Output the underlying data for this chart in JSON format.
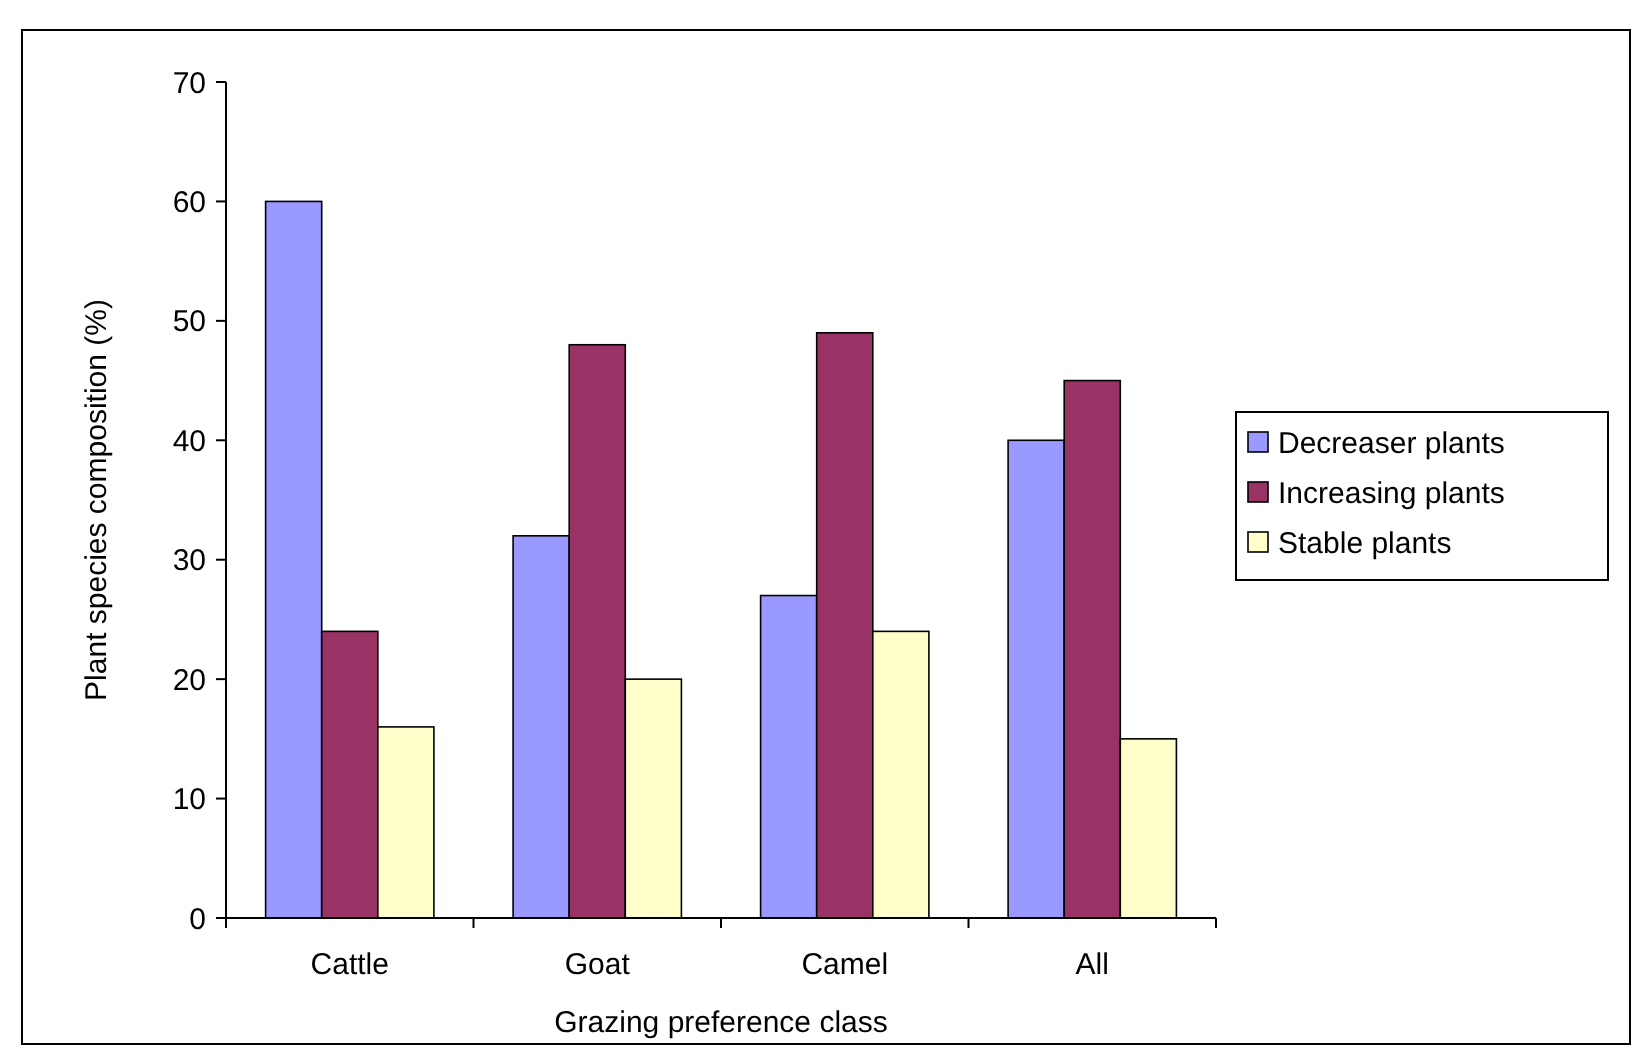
{
  "chart_data": {
    "type": "bar",
    "xlabel": "Grazing preference class",
    "ylabel": "Plant species composition (%)",
    "categories": [
      "Cattle",
      "Goat",
      "Camel",
      "All"
    ],
    "series": [
      {
        "name": "Decreaser plants",
        "color": "#9999ff",
        "values": [
          60,
          32,
          27,
          40
        ]
      },
      {
        "name": "Increasing plants",
        "color": "#993366",
        "values": [
          24,
          48,
          49,
          45
        ]
      },
      {
        "name": "Stable plants",
        "color": "#ffffcc",
        "values": [
          16,
          20,
          24,
          15
        ]
      }
    ],
    "ylim": [
      0,
      70
    ],
    "yticks": [
      0,
      10,
      20,
      30,
      40,
      50,
      60,
      70
    ],
    "grid": false,
    "legend": "right"
  }
}
